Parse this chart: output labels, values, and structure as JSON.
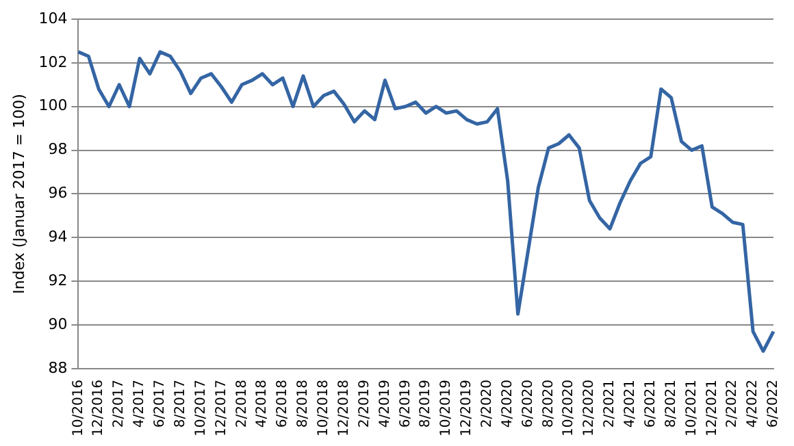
{
  "chart_data": {
    "type": "line",
    "ylabel": "Index (Januar 2017 = 100)",
    "categories": [
      "10/2016",
      null,
      "12/2016",
      null,
      "2/2017",
      null,
      "4/2017",
      null,
      "6/2017",
      null,
      "8/2017",
      null,
      "10/2017",
      null,
      "12/2017",
      null,
      "2/2018",
      null,
      "4/2018",
      null,
      "6/2018",
      null,
      "8/2018",
      null,
      "10/2018",
      null,
      "12/2018",
      null,
      "2/2019",
      null,
      "4/2019",
      null,
      "6/2019",
      null,
      "8/2019",
      null,
      "10/2019",
      null,
      "12/2019",
      null,
      "2/2020",
      null,
      "4/2020",
      null,
      "6/2020",
      null,
      "8/2020",
      null,
      "10/2020",
      null,
      "12/2020",
      null,
      "2/2021",
      null,
      "4/2021",
      null,
      "6/2021",
      null,
      "8/2021",
      null,
      "10/2021",
      null,
      "12/2021",
      null,
      "2/2022",
      null,
      "4/2022",
      null,
      "6/2022"
    ],
    "series": [
      {
        "color": "#3465a4",
        "values": [
          102.5,
          102.3,
          100.8,
          100.0,
          101.0,
          100.0,
          102.2,
          101.5,
          102.5,
          102.3,
          101.6,
          100.6,
          101.3,
          101.5,
          100.9,
          100.2,
          101.0,
          101.2,
          101.5,
          101.0,
          101.3,
          100.0,
          101.4,
          100.0,
          100.5,
          100.7,
          100.1,
          99.3,
          99.8,
          99.4,
          101.2,
          99.9,
          100.0,
          100.2,
          99.7,
          100.0,
          99.7,
          99.8,
          99.4,
          99.2,
          99.3,
          99.9,
          96.6,
          90.5,
          93.4,
          96.3,
          98.1,
          98.3,
          98.7,
          98.1,
          95.7,
          94.9,
          94.4,
          95.6,
          96.6,
          97.4,
          97.7,
          100.8,
          100.4,
          98.4,
          98.0,
          98.2,
          95.4,
          95.1,
          94.7,
          94.6,
          89.7,
          88.8,
          89.7
        ]
      }
    ],
    "ylim": [
      88,
      104
    ],
    "yticks": [
      88,
      90,
      92,
      94,
      96,
      98,
      100,
      102,
      104
    ],
    "grid": "y",
    "legend": false,
    "marker": "none",
    "line_style": "solid"
  }
}
